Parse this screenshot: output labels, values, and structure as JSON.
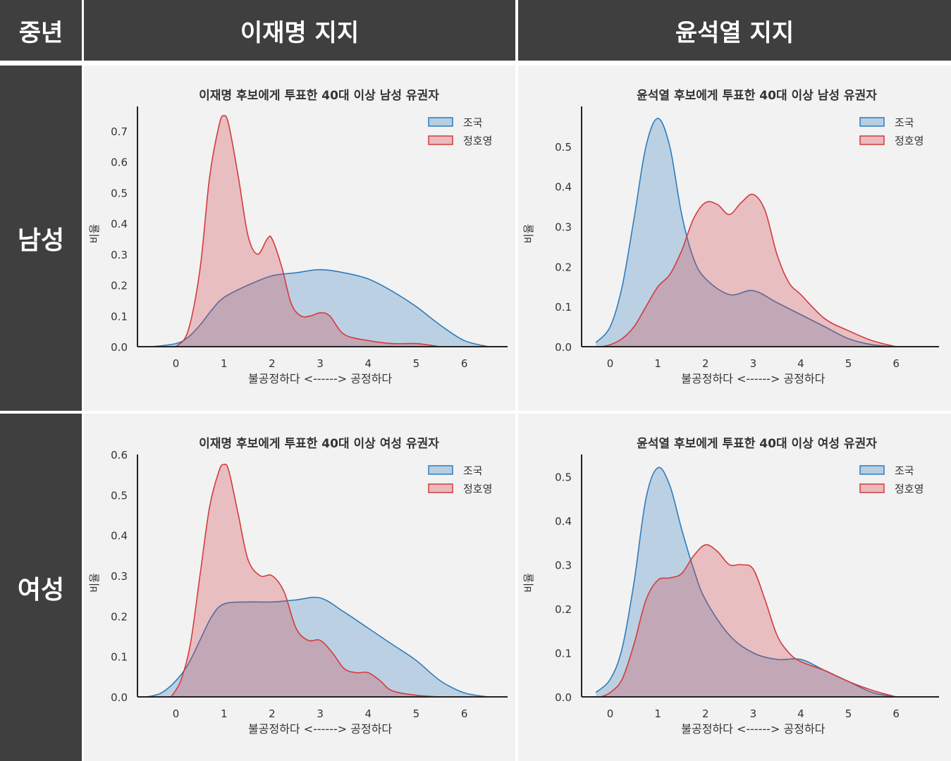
{
  "header": {
    "corner_label": "중년",
    "columns": [
      "이재명 지지",
      "윤석열 지지"
    ],
    "rows": [
      "남성",
      "여성"
    ]
  },
  "colors": {
    "series_a": "#2f7cbd",
    "series_b": "#d33b3f",
    "header_bg": "#3f3f3f",
    "panel_bg": "#f2f2f2"
  },
  "chart_data": [
    {
      "type": "area",
      "title": "이재명 후보에게 투표한 40대 이상 남성 유권자",
      "xlabel": "불공정하다 <------> 공정하다",
      "ylabel": "비율",
      "xlim": [
        -0.8,
        6.9
      ],
      "ylim": [
        0,
        0.78
      ],
      "xticks": [
        "0",
        "1",
        "2",
        "3",
        "4",
        "5",
        "6"
      ],
      "yticks": [
        "0.0",
        "0.1",
        "0.2",
        "0.3",
        "0.4",
        "0.5",
        "0.6",
        "0.7"
      ],
      "legend": [
        "조국",
        "정호영"
      ],
      "series": [
        {
          "name": "조국",
          "x": [
            -0.5,
            0,
            0.25,
            0.5,
            0.75,
            1,
            1.5,
            2,
            2.5,
            3,
            3.5,
            4,
            4.5,
            5,
            5.5,
            6,
            6.5
          ],
          "y": [
            0,
            0.01,
            0.03,
            0.07,
            0.12,
            0.16,
            0.2,
            0.23,
            0.24,
            0.25,
            0.24,
            0.22,
            0.18,
            0.13,
            0.07,
            0.02,
            0
          ]
        },
        {
          "name": "정호영",
          "x": [
            0,
            0.25,
            0.5,
            0.7,
            0.9,
            1,
            1.1,
            1.3,
            1.5,
            1.7,
            1.9,
            2,
            2.2,
            2.4,
            2.6,
            2.8,
            3,
            3.2,
            3.5,
            4,
            4.5,
            5,
            5.5
          ],
          "y": [
            0,
            0.05,
            0.25,
            0.55,
            0.72,
            0.75,
            0.72,
            0.55,
            0.36,
            0.3,
            0.35,
            0.35,
            0.26,
            0.14,
            0.1,
            0.1,
            0.11,
            0.1,
            0.04,
            0.02,
            0.01,
            0.01,
            0
          ]
        }
      ]
    },
    {
      "type": "area",
      "title": "윤석열 후보에게 투표한 40대 이상 남성 유권자",
      "xlabel": "불공정하다 <------> 공정하다",
      "ylabel": "비율",
      "xlim": [
        -0.6,
        6.9
      ],
      "ylim": [
        0,
        0.6
      ],
      "xticks": [
        "0",
        "1",
        "2",
        "3",
        "4",
        "5",
        "6"
      ],
      "yticks": [
        "0.0",
        "0.1",
        "0.2",
        "0.3",
        "0.4",
        "0.5"
      ],
      "legend": [
        "조국",
        "정호영"
      ],
      "series": [
        {
          "name": "조국",
          "x": [
            -0.3,
            0,
            0.25,
            0.5,
            0.75,
            1,
            1.25,
            1.5,
            1.75,
            2,
            2.5,
            3,
            3.5,
            4,
            4.5,
            5,
            5.5,
            6
          ],
          "y": [
            0.01,
            0.05,
            0.15,
            0.32,
            0.5,
            0.57,
            0.5,
            0.33,
            0.22,
            0.17,
            0.13,
            0.14,
            0.11,
            0.08,
            0.05,
            0.02,
            0.005,
            0
          ]
        },
        {
          "name": "정호영",
          "x": [
            -0.2,
            0,
            0.25,
            0.5,
            0.75,
            1,
            1.25,
            1.5,
            1.75,
            2,
            2.25,
            2.5,
            2.75,
            3,
            3.25,
            3.5,
            3.75,
            4,
            4.5,
            5,
            5.5,
            6
          ],
          "y": [
            0,
            0.005,
            0.02,
            0.05,
            0.1,
            0.15,
            0.18,
            0.24,
            0.32,
            0.36,
            0.355,
            0.33,
            0.36,
            0.38,
            0.34,
            0.23,
            0.16,
            0.13,
            0.07,
            0.04,
            0.015,
            0
          ]
        }
      ]
    },
    {
      "type": "area",
      "title": "이재명 후보에게 투표한 40대 이상 여성 유권자",
      "xlabel": "불공정하다 <------> 공정하다",
      "ylabel": "비율",
      "xlim": [
        -0.8,
        6.9
      ],
      "ylim": [
        0,
        0.6
      ],
      "xticks": [
        "0",
        "1",
        "2",
        "3",
        "4",
        "5",
        "6"
      ],
      "yticks": [
        "0.0",
        "0.1",
        "0.2",
        "0.3",
        "0.4",
        "0.5",
        "0.6"
      ],
      "legend": [
        "조국",
        "정호영"
      ],
      "series": [
        {
          "name": "조국",
          "x": [
            -0.6,
            -0.3,
            0,
            0.25,
            0.5,
            0.75,
            1,
            1.5,
            2,
            2.5,
            3,
            3.5,
            4,
            4.5,
            5,
            5.5,
            6,
            6.5
          ],
          "y": [
            0,
            0.01,
            0.04,
            0.08,
            0.14,
            0.2,
            0.23,
            0.235,
            0.235,
            0.24,
            0.245,
            0.21,
            0.17,
            0.13,
            0.09,
            0.04,
            0.01,
            0
          ]
        },
        {
          "name": "정호영",
          "x": [
            -0.1,
            0.1,
            0.3,
            0.5,
            0.7,
            0.9,
            1,
            1.1,
            1.3,
            1.5,
            1.75,
            2,
            2.25,
            2.5,
            2.75,
            3,
            3.25,
            3.5,
            3.75,
            4,
            4.25,
            4.5,
            5,
            5.5
          ],
          "y": [
            0,
            0.04,
            0.13,
            0.3,
            0.47,
            0.56,
            0.575,
            0.56,
            0.45,
            0.34,
            0.3,
            0.3,
            0.26,
            0.17,
            0.14,
            0.14,
            0.11,
            0.07,
            0.06,
            0.06,
            0.04,
            0.015,
            0.004,
            0
          ]
        }
      ]
    },
    {
      "type": "area",
      "title": "윤석열 후보에게 투표한 40대 이상 여성 유권자",
      "xlabel": "불공정하다 <------> 공정하다",
      "ylabel": "비율",
      "xlim": [
        -0.6,
        6.9
      ],
      "ylim": [
        0,
        0.55
      ],
      "xticks": [
        "0",
        "1",
        "2",
        "3",
        "4",
        "5",
        "6"
      ],
      "yticks": [
        "0.0",
        "0.1",
        "0.2",
        "0.3",
        "0.4",
        "0.5"
      ],
      "legend": [
        "조국",
        "정호영"
      ],
      "series": [
        {
          "name": "조국",
          "x": [
            -0.3,
            0,
            0.25,
            0.5,
            0.75,
            1,
            1.25,
            1.5,
            1.75,
            2,
            2.5,
            3,
            3.5,
            4,
            4.5,
            5,
            5.5,
            6
          ],
          "y": [
            0.01,
            0.04,
            0.11,
            0.26,
            0.45,
            0.52,
            0.48,
            0.38,
            0.29,
            0.22,
            0.14,
            0.1,
            0.085,
            0.085,
            0.06,
            0.035,
            0.01,
            0
          ]
        },
        {
          "name": "정호영",
          "x": [
            -0.2,
            0,
            0.25,
            0.5,
            0.75,
            1,
            1.25,
            1.5,
            1.75,
            2,
            2.25,
            2.5,
            2.75,
            3,
            3.25,
            3.5,
            3.75,
            4,
            4.5,
            5,
            5.5,
            6
          ],
          "y": [
            0,
            0.01,
            0.04,
            0.12,
            0.22,
            0.265,
            0.27,
            0.28,
            0.32,
            0.345,
            0.33,
            0.3,
            0.3,
            0.29,
            0.22,
            0.14,
            0.1,
            0.08,
            0.06,
            0.035,
            0.015,
            0
          ]
        }
      ]
    }
  ]
}
